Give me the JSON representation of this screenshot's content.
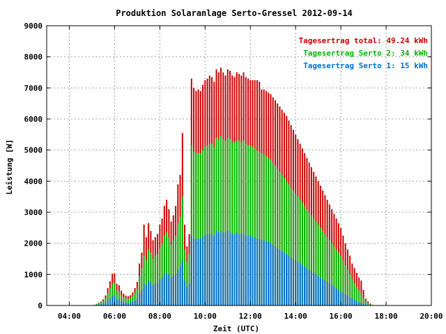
{
  "chart_data": {
    "type": "bar",
    "title": "Produktion Solaranlage Serto-Gressel 2012-09-14",
    "xlabel": "Zeit (UTC)",
    "ylabel": "Leistung [W]",
    "xlim": [
      3,
      20
    ],
    "ylim": [
      0,
      9000
    ],
    "x_ticks": [
      "04:00",
      "06:00",
      "08:00",
      "10:00",
      "12:00",
      "14:00",
      "16:00",
      "18:00",
      "20:00"
    ],
    "y_ticks": [
      "0",
      "1000",
      "2000",
      "3000",
      "4000",
      "5000",
      "6000",
      "7000",
      "8000",
      "9000"
    ],
    "grid": true,
    "legend_position": "top-right",
    "legend": [
      {
        "label": "Tagesertrag total: 49.24 kWh",
        "color": "#cc0000"
      },
      {
        "label": "Tagesertrag Serto 2: 34 kWh",
        "color": "#00b800"
      },
      {
        "label": "Tagesertrag Serto 1: 15 kWh",
        "color": "#0070d0"
      }
    ],
    "x_unit_note": "hours (UTC)",
    "series": [
      {
        "name": "Tagesertrag total: 49.24 kWh",
        "color": "#cc0000",
        "x": [
          5.1,
          5.2,
          5.3,
          5.4,
          5.5,
          5.6,
          5.7,
          5.8,
          5.9,
          6.0,
          6.1,
          6.2,
          6.3,
          6.4,
          6.5,
          6.6,
          6.7,
          6.8,
          6.9,
          7.0,
          7.1,
          7.2,
          7.3,
          7.4,
          7.5,
          7.6,
          7.7,
          7.8,
          7.9,
          8.0,
          8.1,
          8.2,
          8.3,
          8.4,
          8.5,
          8.6,
          8.7,
          8.8,
          8.9,
          9.0,
          9.1,
          9.2,
          9.3,
          9.4,
          9.5,
          9.6,
          9.7,
          9.8,
          9.9,
          10.0,
          10.1,
          10.2,
          10.3,
          10.4,
          10.5,
          10.6,
          10.7,
          10.8,
          10.9,
          11.0,
          11.1,
          11.2,
          11.3,
          11.4,
          11.5,
          11.6,
          11.7,
          11.8,
          11.9,
          12.0,
          12.1,
          12.2,
          12.3,
          12.4,
          12.5,
          12.6,
          12.7,
          12.8,
          12.9,
          13.0,
          13.1,
          13.2,
          13.3,
          13.4,
          13.5,
          13.6,
          13.7,
          13.8,
          13.9,
          14.0,
          14.1,
          14.2,
          14.3,
          14.4,
          14.5,
          14.6,
          14.7,
          14.8,
          14.9,
          15.0,
          15.1,
          15.2,
          15.3,
          15.4,
          15.5,
          15.6,
          15.7,
          15.8,
          15.9,
          16.0,
          16.1,
          16.2,
          16.3,
          16.4,
          16.5,
          16.6,
          16.7,
          16.8,
          16.9,
          17.0,
          17.1,
          17.2,
          17.3,
          17.4,
          17.5
        ],
        "values": [
          20,
          50,
          90,
          130,
          200,
          320,
          560,
          780,
          1020,
          1030,
          700,
          650,
          480,
          380,
          320,
          300,
          330,
          420,
          560,
          760,
          1350,
          1700,
          2600,
          2200,
          2650,
          2400,
          2100,
          2200,
          2300,
          2600,
          2800,
          3200,
          3400,
          3100,
          2700,
          2900,
          3200,
          3900,
          4200,
          5550,
          2600,
          1900,
          2300,
          7300,
          7000,
          6900,
          6950,
          6900,
          7100,
          7250,
          7300,
          7400,
          7350,
          7200,
          7600,
          7500,
          7650,
          7500,
          7400,
          7600,
          7550,
          7400,
          7350,
          7500,
          7450,
          7400,
          7500,
          7350,
          7300,
          7250,
          7250,
          7250,
          7250,
          7200,
          6950,
          6950,
          6900,
          6850,
          6800,
          6700,
          6600,
          6500,
          6400,
          6300,
          6200,
          6100,
          5950,
          5800,
          5650,
          5500,
          5350,
          5200,
          5050,
          4900,
          4750,
          4600,
          4450,
          4300,
          4150,
          4000,
          3850,
          3700,
          3550,
          3400,
          3250,
          3100,
          2950,
          2800,
          2650,
          2500,
          2250,
          2000,
          1800,
          1600,
          1350,
          1200,
          1050,
          900,
          800,
          500,
          220,
          130,
          60,
          20,
          10
        ]
      },
      {
        "name": "Tagesertrag Serto 2: 34 kWh",
        "color": "#00b800",
        "x": [
          5.1,
          5.2,
          5.3,
          5.4,
          5.5,
          5.6,
          5.7,
          5.8,
          5.9,
          6.0,
          6.1,
          6.2,
          6.3,
          6.4,
          6.5,
          6.6,
          6.7,
          6.8,
          6.9,
          7.0,
          7.1,
          7.2,
          7.3,
          7.4,
          7.5,
          7.6,
          7.7,
          7.8,
          7.9,
          8.0,
          8.1,
          8.2,
          8.3,
          8.4,
          8.5,
          8.6,
          8.7,
          8.8,
          8.9,
          9.0,
          9.1,
          9.2,
          9.3,
          9.4,
          9.5,
          9.6,
          9.7,
          9.8,
          9.9,
          10.0,
          10.1,
          10.2,
          10.3,
          10.4,
          10.5,
          10.6,
          10.7,
          10.8,
          10.9,
          11.0,
          11.1,
          11.2,
          11.3,
          11.4,
          11.5,
          11.6,
          11.7,
          11.8,
          11.9,
          12.0,
          12.1,
          12.2,
          12.3,
          12.4,
          12.5,
          12.6,
          12.7,
          12.8,
          12.9,
          13.0,
          13.1,
          13.2,
          13.3,
          13.4,
          13.5,
          13.6,
          13.7,
          13.8,
          13.9,
          14.0,
          14.1,
          14.2,
          14.3,
          14.4,
          14.5,
          14.6,
          14.7,
          14.8,
          14.9,
          15.0,
          15.1,
          15.2,
          15.3,
          15.4,
          15.5,
          15.6,
          15.7,
          15.8,
          15.9,
          16.0,
          16.1,
          16.2,
          16.3,
          16.4,
          16.5,
          16.6,
          16.7,
          16.8,
          16.9,
          17.0,
          17.1,
          17.2,
          17.3,
          17.4,
          17.5
        ],
        "values": [
          15,
          40,
          70,
          100,
          150,
          240,
          400,
          560,
          700,
          720,
          500,
          450,
          330,
          270,
          230,
          220,
          240,
          300,
          400,
          540,
          950,
          1200,
          1600,
          1450,
          1800,
          1700,
          1500,
          1600,
          1650,
          1850,
          2000,
          2250,
          2350,
          2200,
          1950,
          2100,
          2250,
          2650,
          2850,
          3500,
          1800,
          1400,
          1650,
          5150,
          4950,
          4900,
          4900,
          4900,
          5000,
          5100,
          5150,
          5200,
          5200,
          5100,
          5400,
          5350,
          5450,
          5350,
          5300,
          5400,
          5350,
          5250,
          5250,
          5300,
          5300,
          5250,
          5300,
          5200,
          5150,
          5150,
          5100,
          5050,
          5000,
          4950,
          4900,
          4850,
          4800,
          4750,
          4700,
          4600,
          4500,
          4400,
          4300,
          4200,
          4100,
          4000,
          3900,
          3800,
          3700,
          3600,
          3500,
          3400,
          3300,
          3200,
          3100,
          3000,
          2900,
          2800,
          2700,
          2600,
          2500,
          2400,
          2300,
          2200,
          2100,
          2000,
          1900,
          1800,
          1700,
          1600,
          1450,
          1300,
          1150,
          1000,
          850,
          720,
          600,
          500,
          400,
          250,
          130,
          80,
          40,
          15,
          5
        ]
      },
      {
        "name": "Tagesertrag Serto 1: 15 kWh",
        "color": "#0070d0",
        "x": [
          5.1,
          5.2,
          5.3,
          5.4,
          5.5,
          5.6,
          5.7,
          5.8,
          5.9,
          6.0,
          6.1,
          6.2,
          6.3,
          6.4,
          6.5,
          6.6,
          6.7,
          6.8,
          6.9,
          7.0,
          7.1,
          7.2,
          7.3,
          7.4,
          7.5,
          7.6,
          7.7,
          7.8,
          7.9,
          8.0,
          8.1,
          8.2,
          8.3,
          8.4,
          8.5,
          8.6,
          8.7,
          8.8,
          8.9,
          9.0,
          9.1,
          9.2,
          9.3,
          9.4,
          9.5,
          9.6,
          9.7,
          9.8,
          9.9,
          10.0,
          10.1,
          10.2,
          10.3,
          10.4,
          10.5,
          10.6,
          10.7,
          10.8,
          10.9,
          11.0,
          11.1,
          11.2,
          11.3,
          11.4,
          11.5,
          11.6,
          11.7,
          11.8,
          11.9,
          12.0,
          12.1,
          12.2,
          12.3,
          12.4,
          12.5,
          12.6,
          12.7,
          12.8,
          12.9,
          13.0,
          13.1,
          13.2,
          13.3,
          13.4,
          13.5,
          13.6,
          13.7,
          13.8,
          13.9,
          14.0,
          14.1,
          14.2,
          14.3,
          14.4,
          14.5,
          14.6,
          14.7,
          14.8,
          14.9,
          15.0,
          15.1,
          15.2,
          15.3,
          15.4,
          15.5,
          15.6,
          15.7,
          15.8,
          15.9,
          16.0,
          16.1,
          16.2,
          16.3,
          16.4,
          16.5,
          16.6,
          16.7,
          16.8,
          16.9,
          17.0,
          17.1,
          17.2,
          17.3,
          17.4,
          17.5
        ],
        "values": [
          5,
          15,
          25,
          40,
          60,
          100,
          160,
          220,
          300,
          310,
          200,
          190,
          140,
          110,
          90,
          90,
          100,
          120,
          160,
          220,
          400,
          500,
          700,
          650,
          800,
          750,
          650,
          700,
          730,
          820,
          900,
          1000,
          1050,
          1000,
          900,
          950,
          1000,
          1150,
          1250,
          1450,
          800,
          600,
          700,
          2250,
          2150,
          2150,
          2150,
          2150,
          2200,
          2250,
          2300,
          2300,
          2300,
          2250,
          2400,
          2350,
          2400,
          2350,
          2350,
          2400,
          2350,
          2300,
          2300,
          2350,
          2300,
          2300,
          2300,
          2250,
          2250,
          2250,
          2200,
          2200,
          2150,
          2150,
          2100,
          2100,
          2050,
          2050,
          2000,
          1950,
          1900,
          1850,
          1800,
          1750,
          1700,
          1650,
          1600,
          1550,
          1500,
          1450,
          1400,
          1350,
          1300,
          1250,
          1200,
          1150,
          1100,
          1050,
          1000,
          950,
          900,
          850,
          800,
          750,
          700,
          650,
          600,
          550,
          500,
          450,
          400,
          350,
          300,
          260,
          220,
          180,
          150,
          120,
          90,
          60,
          40,
          25,
          15,
          8,
          3
        ]
      }
    ]
  }
}
